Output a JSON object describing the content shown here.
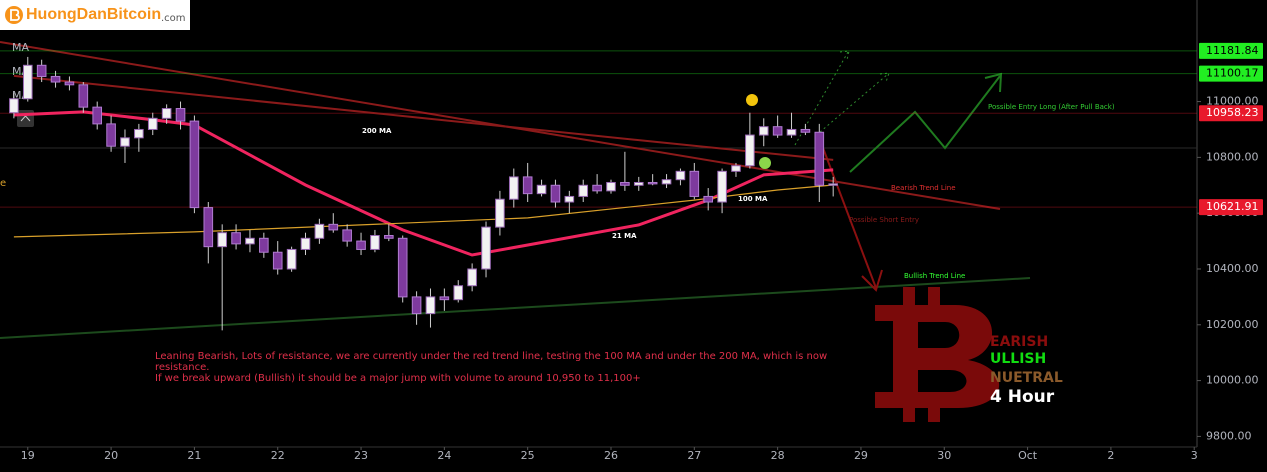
{
  "header": {
    "logo": "HuongDanBitcoin",
    "logo_suffix": ".com"
  },
  "chart_data": {
    "type": "candlestick",
    "ma_labels": [
      "MA",
      "MA",
      "MA"
    ],
    "up_color": "#f2f2f2",
    "down_color": "#7e3a9e",
    "open": [
      10960,
      11010,
      11130,
      11090,
      11070,
      11060,
      10980,
      10920,
      10840,
      10870,
      10900,
      10940,
      10975,
      10930,
      10620,
      10480,
      10530,
      10490,
      10510,
      10460,
      10400,
      10470,
      10510,
      10560,
      10540,
      10500,
      10470,
      10520,
      10510,
      10300,
      10240,
      10300,
      10290,
      10340,
      10400,
      10550,
      10650,
      10730,
      10670,
      10700,
      10640,
      10660,
      10700,
      10680,
      10710,
      10700,
      10710,
      10705,
      10720,
      10750,
      10660,
      10640,
      10750,
      10770,
      10880,
      10910,
      10880,
      10900,
      10890,
      10700
    ],
    "high": [
      11030,
      11160,
      11150,
      11110,
      11090,
      11070,
      11000,
      10950,
      10900,
      10920,
      10960,
      10990,
      11000,
      10950,
      10640,
      10560,
      10560,
      10540,
      10530,
      10500,
      10480,
      10530,
      10580,
      10600,
      10560,
      10530,
      10540,
      10560,
      10520,
      10320,
      10330,
      10330,
      10360,
      10420,
      10570,
      10680,
      10760,
      10780,
      10720,
      10720,
      10680,
      10720,
      10740,
      10720,
      10820,
      10730,
      10740,
      10740,
      10760,
      10780,
      10690,
      10760,
      10780,
      10960,
      10940,
      10950,
      10960,
      10920,
      10920,
      10730
    ],
    "low": [
      10940,
      11000,
      11070,
      11050,
      11040,
      10960,
      10900,
      10820,
      10780,
      10820,
      10880,
      10920,
      10900,
      10600,
      10420,
      10180,
      10470,
      10460,
      10440,
      10380,
      10390,
      10450,
      10490,
      10530,
      10480,
      10450,
      10460,
      10500,
      10280,
      10200,
      10190,
      10250,
      10280,
      10320,
      10370,
      10520,
      10620,
      10640,
      10660,
      10620,
      10600,
      10640,
      10670,
      10670,
      10680,
      10680,
      10700,
      10690,
      10700,
      10650,
      10610,
      10600,
      10730,
      10760,
      10840,
      10870,
      10870,
      10880,
      10640,
      10660
    ],
    "close": [
      11010,
      11130,
      11090,
      11070,
      11060,
      10980,
      10920,
      10840,
      10870,
      10900,
      10940,
      10975,
      10930,
      10620,
      10480,
      10530,
      10490,
      10510,
      10460,
      10400,
      10470,
      10510,
      10560,
      10540,
      10500,
      10470,
      10520,
      10510,
      10300,
      10240,
      10300,
      10290,
      10340,
      10400,
      10550,
      10650,
      10730,
      10670,
      10700,
      10640,
      10660,
      10700,
      10680,
      10710,
      10700,
      10710,
      10705,
      10720,
      10750,
      10660,
      10640,
      10750,
      10770,
      10880,
      10910,
      10880,
      10900,
      10890,
      10700,
      10705
    ],
    "series": [
      {
        "name": "21 MA",
        "color": "#f0245f",
        "x": [
          0,
          5,
          10,
          13,
          21,
          28,
          33,
          39,
          45,
          50,
          54,
          59
        ],
        "values": [
          10952,
          10963,
          10935,
          10916,
          10701,
          10540,
          10450,
          10504,
          10558,
          10647,
          10737,
          10755
        ]
      },
      {
        "name": "100 MA",
        "color": "#d9a02a",
        "x": [
          0,
          13,
          25,
          37,
          49,
          55,
          59
        ],
        "values": [
          10515,
          10533,
          10558,
          10583,
          10647,
          10683,
          10701
        ]
      },
      {
        "name": "200 MA",
        "color": "#8b1a1a",
        "x": [
          0,
          30,
          59
        ],
        "values": [
          11092,
          10938,
          10791
        ]
      }
    ],
    "xlim": [
      -1,
      85.2
    ],
    "ylim": [
      9762,
      11364
    ],
    "xticks": [
      {
        "value": 1,
        "label": "19"
      },
      {
        "value": 7,
        "label": "20"
      },
      {
        "value": 13,
        "label": "21"
      },
      {
        "value": 19,
        "label": "22"
      },
      {
        "value": 25,
        "label": "23"
      },
      {
        "value": 31,
        "label": "24"
      },
      {
        "value": 37,
        "label": "25"
      },
      {
        "value": 43,
        "label": "26"
      },
      {
        "value": 49,
        "label": "27"
      },
      {
        "value": 55,
        "label": "28"
      },
      {
        "value": 61,
        "label": "29"
      },
      {
        "value": 67,
        "label": "30"
      },
      {
        "value": 73,
        "label": "Oct"
      },
      {
        "value": 79,
        "label": "2"
      },
      {
        "value": 85,
        "label": "3"
      }
    ],
    "yticks": [
      {
        "value": 9800,
        "label": "9800.00"
      },
      {
        "value": 10000,
        "label": "10000.00"
      },
      {
        "value": 10200,
        "label": "10200.00"
      },
      {
        "value": 10400,
        "label": "10400.00"
      },
      {
        "value": 10600,
        "label": "10600.00"
      },
      {
        "value": 10800,
        "label": "10800.00"
      },
      {
        "value": 11000,
        "label": "11000.00"
      }
    ],
    "grid": false,
    "price_lines": [
      {
        "value": 11181.84,
        "color": "#22ee22"
      },
      {
        "value": 11100.17,
        "color": "#22ee22"
      },
      {
        "value": 10958.23,
        "color": "#e8192c"
      },
      {
        "value": 10621.91,
        "color": "#e8192c"
      }
    ],
    "annotations": [
      "200 MA",
      "100 MA",
      "21 MA",
      "Bearish Trend Line",
      "Possible Short Entry",
      "Bullish Trend Line",
      "Possible Entry Long (After Pull Back)",
      "e"
    ],
    "comment": [
      "Leaning Bearish, Lots of resistance, we are currently under the red trend line, testing the 100 MA and under the 200 MA, which is now resistance.",
      "If we break upward (Bullish) it should be a major jump with volume to around 10,950 to 11,100+"
    ],
    "legend_labels": [
      "EARISH",
      "ULLISH",
      "NUETRAL",
      "4 Hour"
    ]
  }
}
